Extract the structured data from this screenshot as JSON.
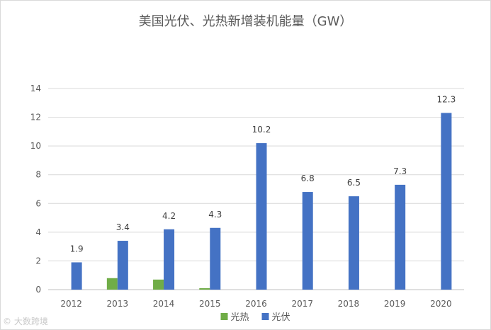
{
  "chart_data": {
    "type": "bar",
    "title": "美国光伏、光热新增装机能量（GW）",
    "xlabel": "",
    "ylabel": "",
    "categories": [
      "2012",
      "2013",
      "2014",
      "2015",
      "2016",
      "2017",
      "2018",
      "2019",
      "2020"
    ],
    "ylim": [
      0,
      14
    ],
    "yticks": [
      0,
      2,
      4,
      6,
      8,
      10,
      12,
      14
    ],
    "grid": true,
    "legend_position": "bottom",
    "series": [
      {
        "name": "光热",
        "color": "#70ad47",
        "values": [
          0,
          0.8,
          0.7,
          0.1,
          0,
          0,
          0,
          0,
          0
        ],
        "show_labels": false
      },
      {
        "name": "光伏",
        "color": "#4472c4",
        "values": [
          1.9,
          3.4,
          4.2,
          4.3,
          10.2,
          6.8,
          6.5,
          7.3,
          12.3
        ],
        "show_labels": true
      }
    ]
  },
  "watermark": "大数跨境"
}
